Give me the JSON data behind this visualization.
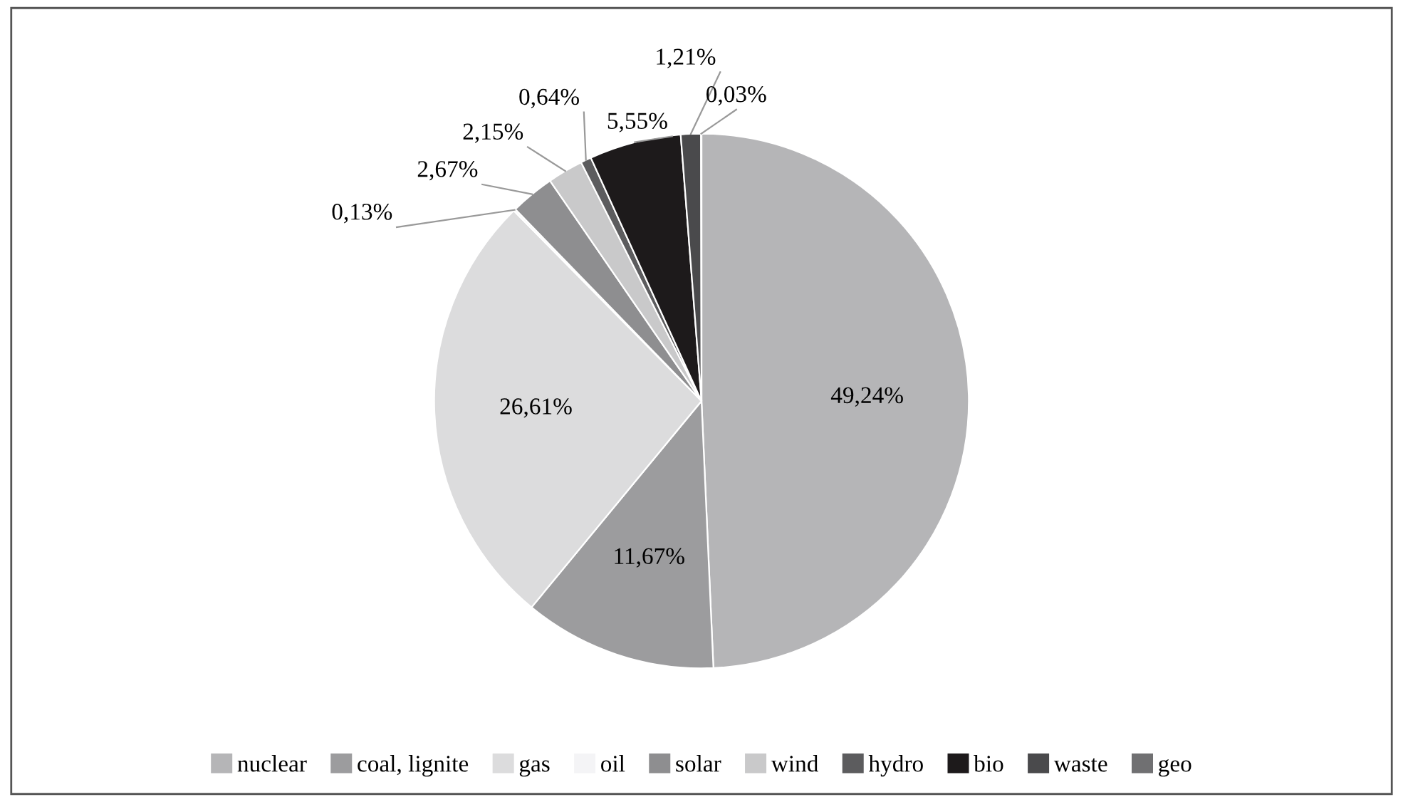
{
  "chart_data": {
    "type": "pie",
    "categories": [
      "nuclear",
      "coal, lignite",
      "gas",
      "oil",
      "solar",
      "wind",
      "hydro",
      "bio",
      "waste",
      "geo"
    ],
    "values": [
      49.24,
      11.67,
      26.61,
      0.13,
      2.67,
      2.15,
      0.64,
      5.55,
      1.21,
      0.03
    ],
    "value_labels": [
      "49,24%",
      "11,67%",
      "26,61%",
      "0,13%",
      "2,67%",
      "2,15%",
      "0,64%",
      "5,55%",
      "1,21%",
      "0,03%"
    ],
    "colors": [
      "#b5b5b7",
      "#9c9c9e",
      "#dcdcdd",
      "#f4f4f6",
      "#8e8e90",
      "#c9c9ca",
      "#5c5c5e",
      "#1d1a1b",
      "#4a4a4c",
      "#707072"
    ],
    "legend": "bottom"
  }
}
